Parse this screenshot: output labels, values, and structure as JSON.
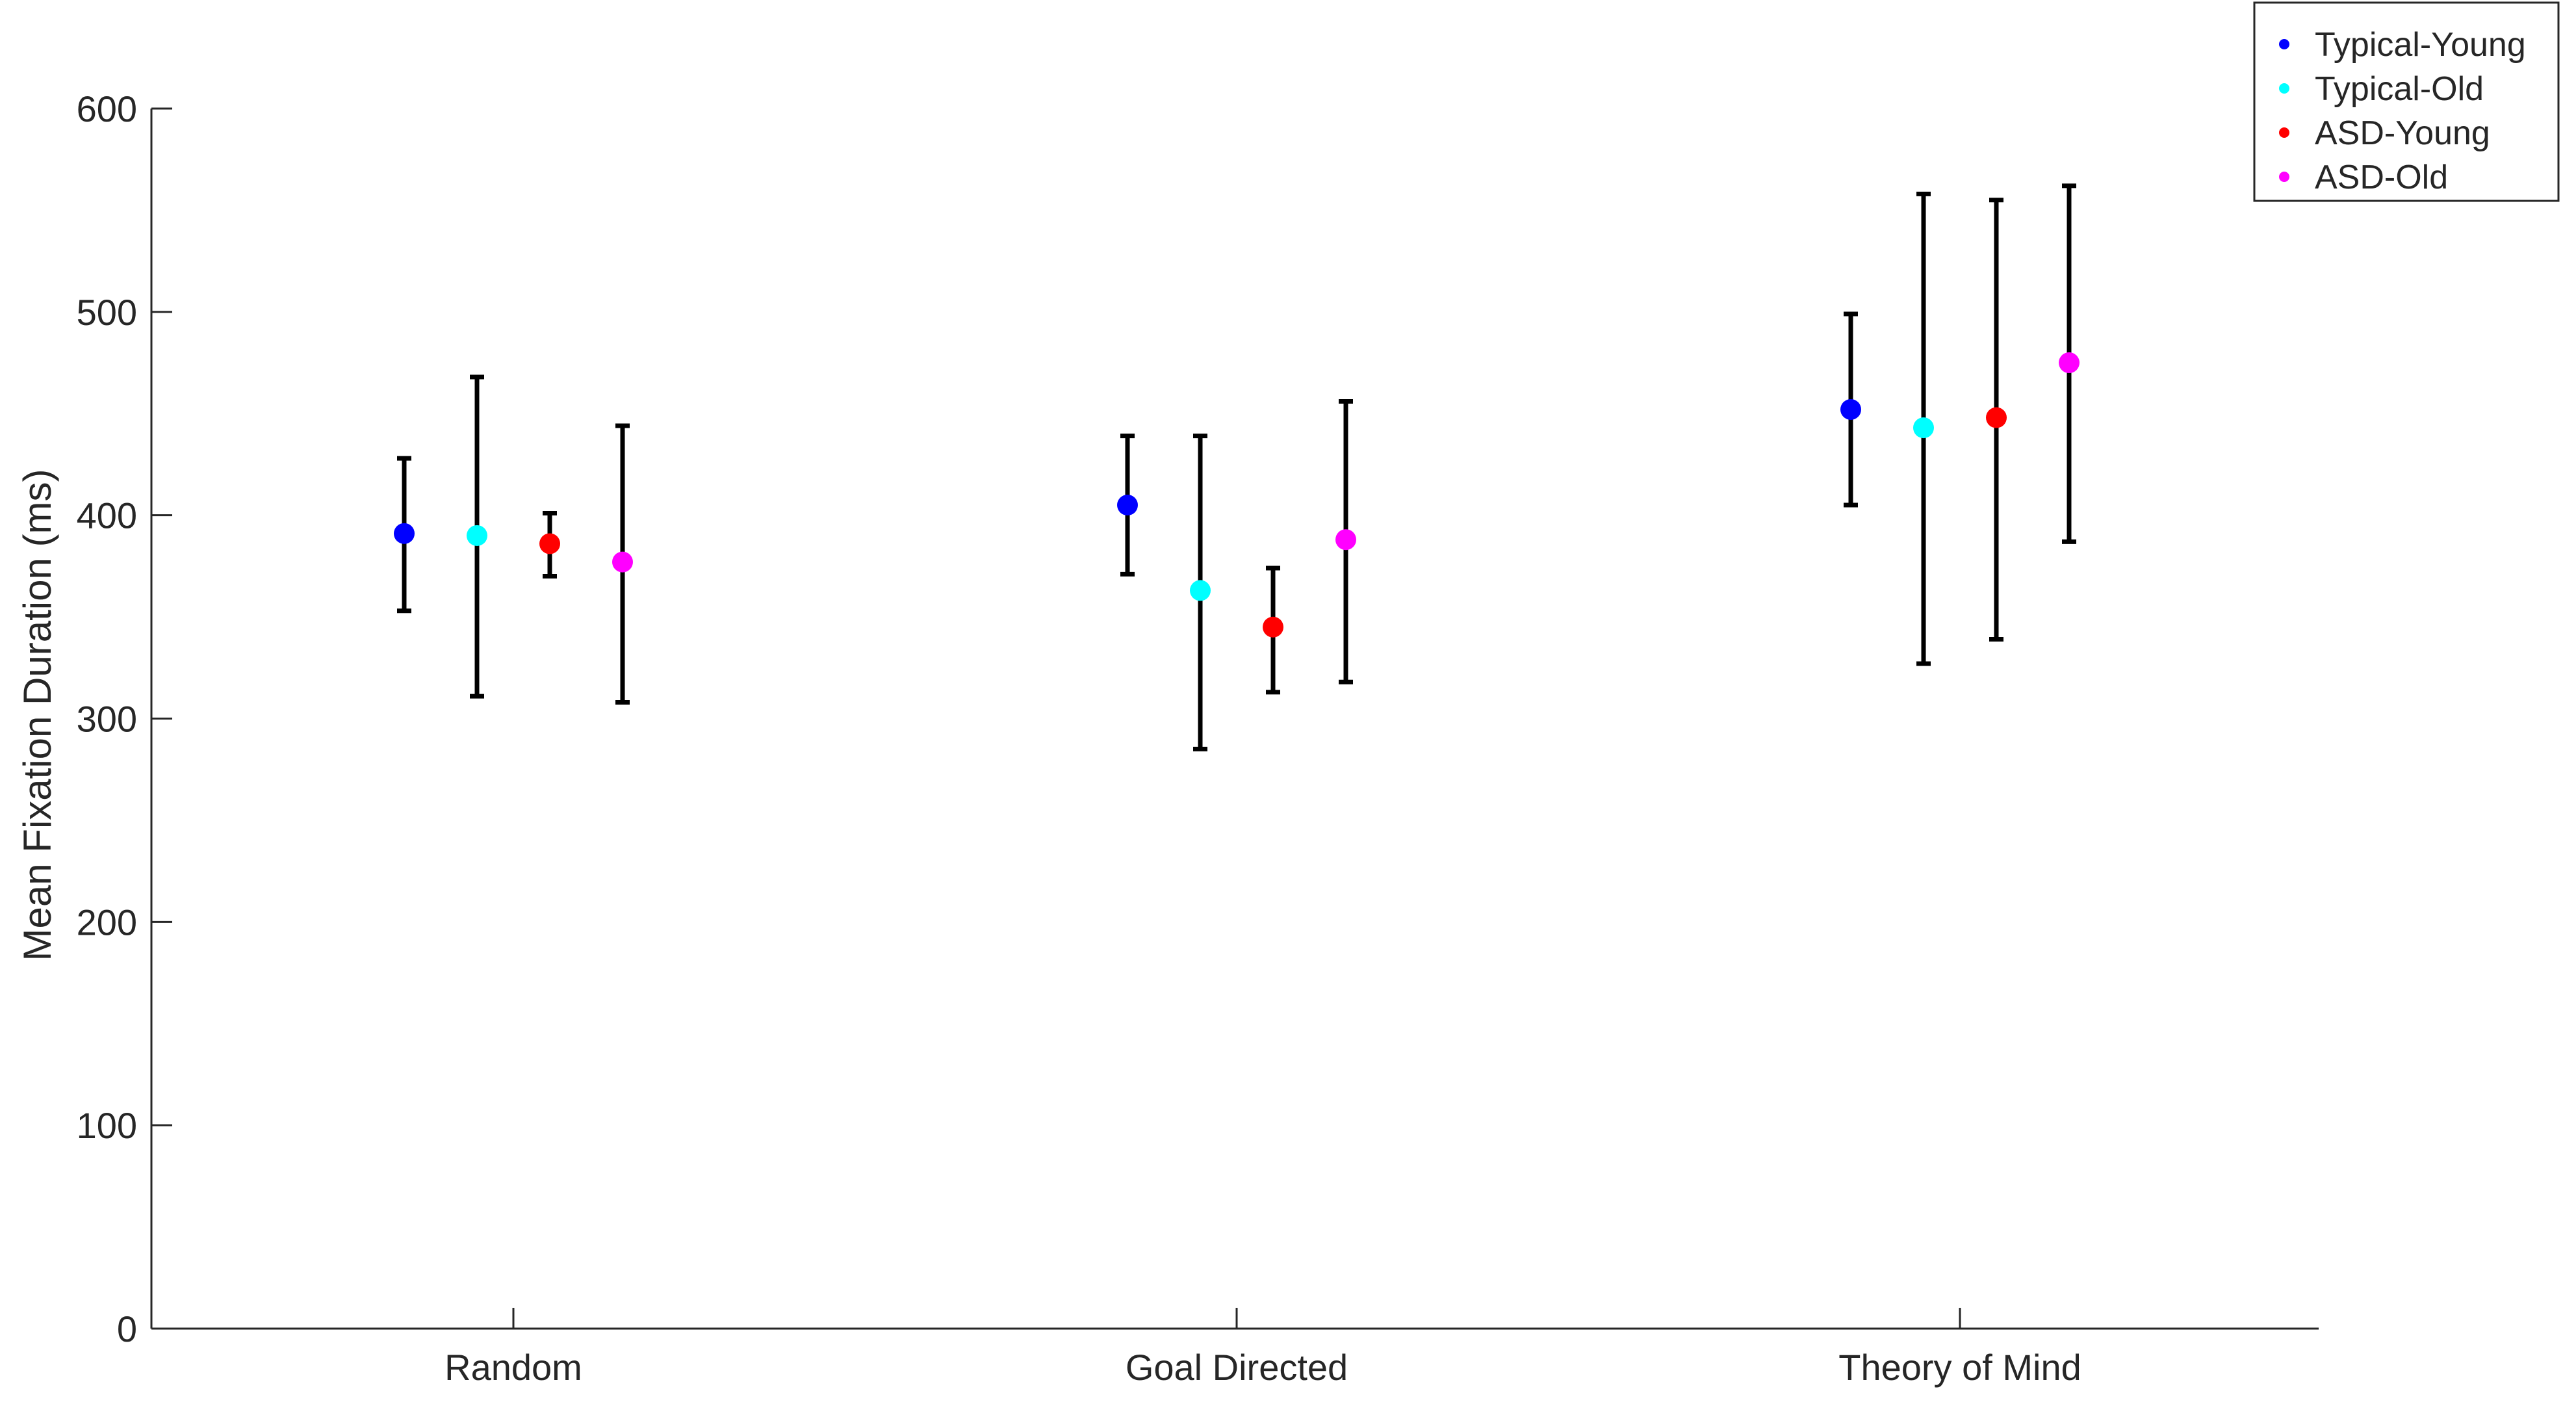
{
  "chart_data": {
    "type": "scatter",
    "title": "",
    "xlabel": "",
    "ylabel": "Mean Fixation Duration (ms)",
    "ylim": [
      0,
      600
    ],
    "yticks": [
      0,
      100,
      200,
      300,
      400,
      500,
      600
    ],
    "categories": [
      "Random",
      "Goal Directed",
      "Theory of Mind"
    ],
    "grid": false,
    "legend_position": "top-right",
    "series": [
      {
        "name": "Typical-Young",
        "color": "#0000ff",
        "values": [
          391,
          405,
          452
        ],
        "lower": [
          353,
          371,
          405
        ],
        "upper": [
          428,
          439,
          499
        ]
      },
      {
        "name": "Typical-Old",
        "color": "#00ffff",
        "values": [
          390,
          363,
          443
        ],
        "lower": [
          311,
          285,
          327
        ],
        "upper": [
          468,
          439,
          558
        ]
      },
      {
        "name": "ASD-Young",
        "color": "#ff0000",
        "values": [
          386,
          345,
          448
        ],
        "lower": [
          370,
          313,
          339
        ],
        "upper": [
          401,
          374,
          555
        ]
      },
      {
        "name": "ASD-Old",
        "color": "#ff00ff",
        "values": [
          377,
          388,
          475
        ],
        "lower": [
          308,
          318,
          387
        ],
        "upper": [
          444,
          456,
          562
        ]
      }
    ]
  }
}
